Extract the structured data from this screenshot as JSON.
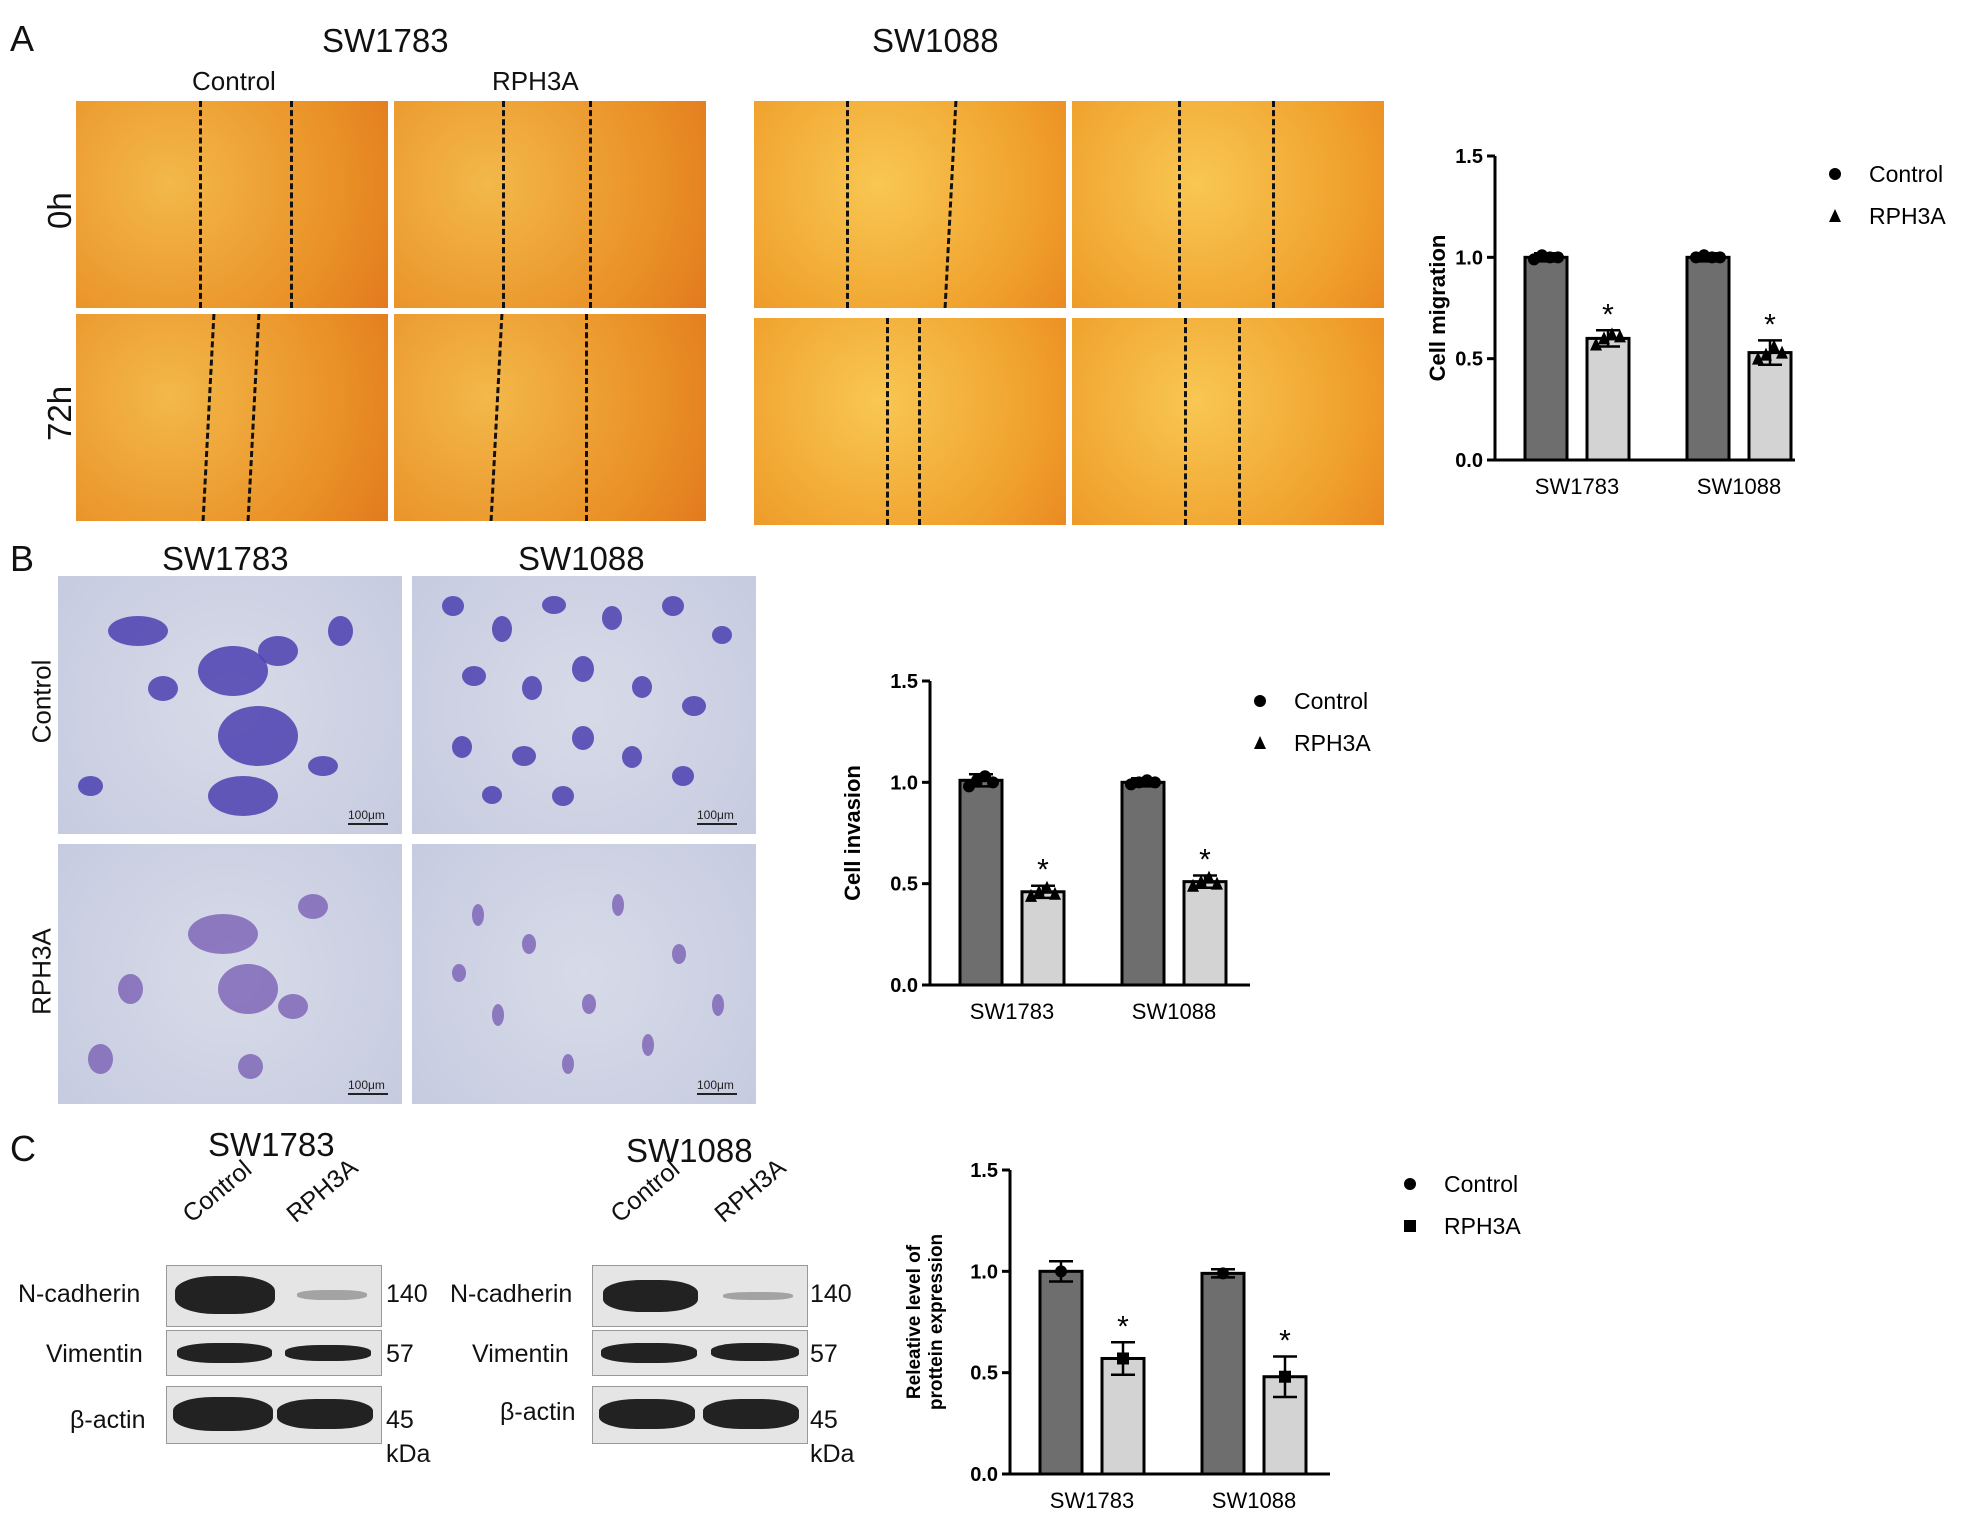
{
  "panels": {
    "a": "A",
    "b": "B",
    "c": "C"
  },
  "panelA": {
    "sw1783": "SW1783",
    "sw1088": "SW1088",
    "control": "Control",
    "rph3a": "RPH3A",
    "t0": "0h",
    "t72": "72h"
  },
  "panelB": {
    "sw1783": "SW1783",
    "sw1088": "SW1088",
    "control": "Control",
    "rph3a": "RPH3A",
    "scalebar": "100μm"
  },
  "panelC": {
    "sw1783": "SW1783",
    "sw1088": "SW1088",
    "control": "Control",
    "rph3a": "RPH3A",
    "proteins": [
      "N-cadherin",
      "Vimentin",
      "β-actin"
    ],
    "sizes": [
      "140",
      "57",
      "45"
    ],
    "kda": "kDa"
  },
  "colors": {
    "control_bar": "#6e6e6e",
    "rph3a_bar": "#d3d3d3",
    "axis": "#000000"
  },
  "chart_data": [
    {
      "type": "bar",
      "categories": [
        "SW1783",
        "SW1088"
      ],
      "ylabel": "Cell migration",
      "ylim": [
        0,
        1.5
      ],
      "yticks": [
        "0.0",
        "0.5",
        "1.0",
        "1.5"
      ],
      "legend": {
        "placement": "top-right",
        "entries": [
          {
            "label": "Control",
            "marker": "circle"
          },
          {
            "label": "RPH3A",
            "marker": "triangle"
          }
        ]
      },
      "series": [
        {
          "name": "Control",
          "values": [
            1.0,
            1.0
          ],
          "errors": [
            0.02,
            0.02
          ],
          "points": [
            [
              0.99,
              1.01,
              1.0,
              1.0
            ],
            [
              1.0,
              1.01,
              1.0,
              1.0
            ]
          ]
        },
        {
          "name": "RPH3A",
          "values": [
            0.6,
            0.53
          ],
          "errors": [
            0.04,
            0.06
          ],
          "points": [
            [
              0.57,
              0.6,
              0.62,
              0.61
            ],
            [
              0.5,
              0.52,
              0.56,
              0.53
            ]
          ]
        }
      ],
      "annotations": [
        "*",
        "*"
      ]
    },
    {
      "type": "bar",
      "categories": [
        "SW1783",
        "SW1088"
      ],
      "ylabel": "Cell invasion",
      "ylim": [
        0,
        1.5
      ],
      "yticks": [
        "0.0",
        "0.5",
        "1.0",
        "1.5"
      ],
      "legend": {
        "placement": "top-right",
        "entries": [
          {
            "label": "Control",
            "marker": "circle"
          },
          {
            "label": "RPH3A",
            "marker": "triangle"
          }
        ]
      },
      "series": [
        {
          "name": "Control",
          "values": [
            1.01,
            1.0
          ],
          "errors": [
            0.03,
            0.02
          ],
          "points": [
            [
              0.98,
              1.01,
              1.03,
              1.0
            ],
            [
              0.99,
              1.0,
              1.01,
              1.0
            ]
          ]
        },
        {
          "name": "RPH3A",
          "values": [
            0.46,
            0.51
          ],
          "errors": [
            0.03,
            0.03
          ],
          "points": [
            [
              0.44,
              0.46,
              0.48,
              0.45
            ],
            [
              0.49,
              0.51,
              0.53,
              0.5
            ]
          ]
        }
      ],
      "annotations": [
        "*",
        "*"
      ]
    },
    {
      "type": "bar",
      "categories": [
        "SW1783",
        "SW1088"
      ],
      "ylabel": "Releative level of prottein expression",
      "ylim": [
        0,
        1.5
      ],
      "yticks": [
        "0.0",
        "0.5",
        "1.0",
        "1.5"
      ],
      "legend": {
        "placement": "top-right",
        "entries": [
          {
            "label": "Control",
            "marker": "circle"
          },
          {
            "label": "RPH3A",
            "marker": "square"
          }
        ]
      },
      "series": [
        {
          "name": "Control",
          "values": [
            1.0,
            0.99
          ],
          "errors": [
            0.05,
            0.02
          ],
          "points": [
            [
              1.0
            ],
            [
              0.99
            ]
          ]
        },
        {
          "name": "RPH3A",
          "values": [
            0.57,
            0.48
          ],
          "errors": [
            0.08,
            0.1
          ],
          "points": [
            [
              0.57
            ],
            [
              0.48
            ]
          ]
        }
      ],
      "annotations": [
        "*",
        "*"
      ]
    }
  ]
}
